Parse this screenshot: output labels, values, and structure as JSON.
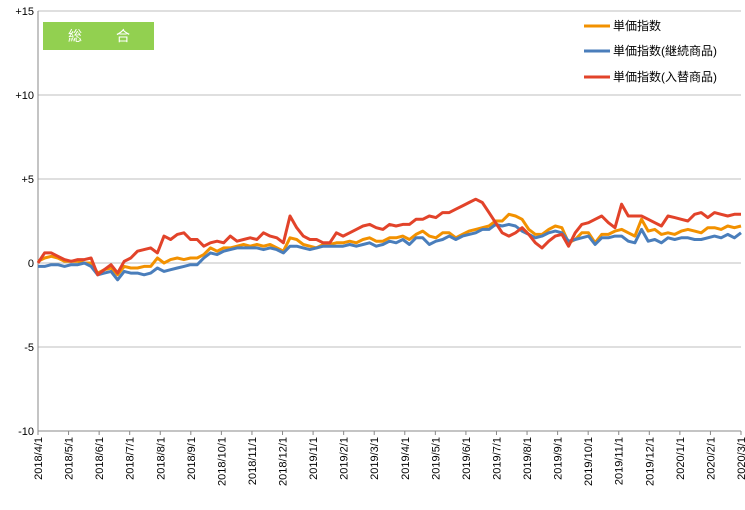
{
  "badge": {
    "label": "総　合",
    "color": "#92d050"
  },
  "chart_data": {
    "type": "line",
    "title": "",
    "xlabel": "",
    "ylabel": "",
    "ylim": [
      -10,
      15
    ],
    "yticks": [
      15,
      10,
      5,
      0,
      -5,
      -10
    ],
    "ytick_labels": [
      "+15",
      "+10",
      "+5",
      "0",
      "-5",
      "-10"
    ],
    "grid": true,
    "legend_position": "top-right",
    "xtick_labels": [
      "2018/4/1",
      "2018/5/1",
      "2018/6/1",
      "2018/7/1",
      "2018/8/1",
      "2018/9/1",
      "2018/10/1",
      "2018/11/1",
      "2018/12/1",
      "2019/1/1",
      "2019/2/1",
      "2019/3/1",
      "2019/4/1",
      "2019/5/1",
      "2019/6/1",
      "2019/7/1",
      "2019/8/1",
      "2019/9/1",
      "2019/10/1",
      "2019/11/1",
      "2019/12/1",
      "2020/1/1",
      "2020/2/1",
      "2020/3/1"
    ],
    "series": [
      {
        "name": "単価指数",
        "color": "#f29100",
        "values": [
          0.1,
          0.3,
          0.4,
          0.3,
          0.1,
          0.1,
          0.1,
          0.0,
          0.0,
          -0.6,
          -0.4,
          -0.3,
          -0.7,
          -0.2,
          -0.3,
          -0.3,
          -0.2,
          -0.2,
          0.3,
          0.0,
          0.2,
          0.3,
          0.2,
          0.3,
          0.3,
          0.5,
          0.9,
          0.7,
          0.9,
          0.9,
          1.0,
          1.1,
          1.0,
          1.1,
          1.0,
          1.1,
          0.9,
          0.7,
          1.5,
          1.4,
          1.1,
          1.0,
          0.9,
          1.1,
          1.1,
          1.2,
          1.2,
          1.3,
          1.2,
          1.4,
          1.5,
          1.3,
          1.3,
          1.5,
          1.5,
          1.6,
          1.4,
          1.7,
          1.9,
          1.6,
          1.5,
          1.8,
          1.8,
          1.5,
          1.7,
          1.9,
          2.0,
          2.1,
          2.2,
          2.5,
          2.5,
          2.9,
          2.8,
          2.6,
          2.0,
          1.7,
          1.7,
          2.0,
          2.2,
          2.1,
          1.2,
          1.4,
          1.8,
          1.8,
          1.2,
          1.7,
          1.7,
          1.9,
          2.0,
          1.8,
          1.6,
          2.6,
          1.9,
          2.0,
          1.7,
          1.8,
          1.7,
          1.9,
          2.0,
          1.9,
          1.8,
          2.1,
          2.1,
          2.0,
          2.2,
          2.1,
          2.2
        ]
      },
      {
        "name": "単価指数(継続商品)",
        "color": "#4a7ebb",
        "values": [
          -0.2,
          -0.2,
          -0.1,
          -0.1,
          -0.2,
          -0.1,
          -0.1,
          0.0,
          -0.2,
          -0.7,
          -0.6,
          -0.5,
          -1.0,
          -0.5,
          -0.6,
          -0.6,
          -0.7,
          -0.6,
          -0.3,
          -0.5,
          -0.4,
          -0.3,
          -0.2,
          -0.1,
          -0.1,
          0.3,
          0.6,
          0.5,
          0.7,
          0.8,
          0.9,
          0.9,
          0.9,
          0.9,
          0.8,
          0.9,
          0.8,
          0.6,
          1.0,
          1.0,
          0.9,
          0.8,
          0.9,
          1.0,
          1.0,
          1.0,
          1.0,
          1.1,
          1.0,
          1.1,
          1.2,
          1.0,
          1.1,
          1.3,
          1.2,
          1.4,
          1.1,
          1.5,
          1.5,
          1.1,
          1.3,
          1.4,
          1.6,
          1.4,
          1.6,
          1.7,
          1.8,
          2.0,
          2.0,
          2.3,
          2.2,
          2.3,
          2.2,
          1.9,
          1.7,
          1.5,
          1.6,
          1.8,
          1.9,
          1.8,
          1.3,
          1.4,
          1.5,
          1.6,
          1.1,
          1.5,
          1.5,
          1.6,
          1.6,
          1.3,
          1.2,
          2.0,
          1.3,
          1.4,
          1.2,
          1.5,
          1.4,
          1.5,
          1.5,
          1.4,
          1.4,
          1.5,
          1.6,
          1.5,
          1.7,
          1.5,
          1.8
        ]
      },
      {
        "name": "単価指数(入替商品)",
        "color": "#e2432a",
        "values": [
          0.0,
          0.6,
          0.6,
          0.4,
          0.2,
          0.1,
          0.2,
          0.2,
          0.3,
          -0.7,
          -0.4,
          -0.1,
          -0.6,
          0.1,
          0.3,
          0.7,
          0.8,
          0.9,
          0.6,
          1.6,
          1.4,
          1.7,
          1.8,
          1.4,
          1.4,
          1.0,
          1.2,
          1.3,
          1.2,
          1.6,
          1.3,
          1.4,
          1.5,
          1.4,
          1.8,
          1.6,
          1.5,
          1.2,
          2.8,
          2.1,
          1.6,
          1.4,
          1.4,
          1.2,
          1.2,
          1.8,
          1.6,
          1.8,
          2.0,
          2.2,
          2.3,
          2.1,
          2.0,
          2.3,
          2.2,
          2.3,
          2.3,
          2.6,
          2.6,
          2.8,
          2.7,
          3.0,
          3.0,
          3.2,
          3.4,
          3.6,
          3.8,
          3.6,
          3.0,
          2.4,
          1.8,
          1.6,
          1.8,
          2.1,
          1.7,
          1.2,
          0.9,
          1.3,
          1.6,
          1.7,
          1.0,
          1.8,
          2.3,
          2.4,
          2.6,
          2.8,
          2.4,
          2.1,
          3.5,
          2.8,
          2.8,
          2.8,
          2.6,
          2.4,
          2.2,
          2.8,
          2.7,
          2.6,
          2.5,
          2.9,
          3.0,
          2.7,
          3.0,
          2.9,
          2.8,
          2.9,
          2.9
        ]
      }
    ]
  }
}
